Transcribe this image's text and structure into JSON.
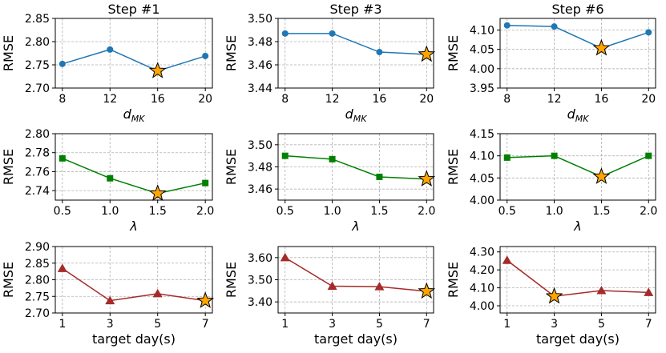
{
  "chart_data": [
    {
      "type": "line",
      "title": "Step #1",
      "xlabel": "d_MK",
      "ylabel": "RMSE",
      "x": [
        8,
        12,
        16,
        20
      ],
      "values": [
        2.752,
        2.783,
        2.737,
        2.769
      ],
      "best_index": 2,
      "xlim": [
        8,
        20
      ],
      "ylim": [
        2.7,
        2.85
      ],
      "xticks": [
        8,
        12,
        16,
        20
      ],
      "xticklabels": [
        "8",
        "12",
        "16",
        "20"
      ],
      "yticks": [
        2.7,
        2.75,
        2.8,
        2.85
      ],
      "yticklabels": [
        "2.70",
        "2.75",
        "2.80",
        "2.85"
      ],
      "color": "#1f77b4",
      "marker": "circle",
      "grid": true
    },
    {
      "type": "line",
      "title": "Step #3",
      "xlabel": "d_MK",
      "ylabel": "RMSE",
      "x": [
        8,
        12,
        16,
        20
      ],
      "values": [
        3.487,
        3.487,
        3.471,
        3.469
      ],
      "best_index": 3,
      "xlim": [
        8,
        20
      ],
      "ylim": [
        3.44,
        3.5
      ],
      "xticks": [
        8,
        12,
        16,
        20
      ],
      "xticklabels": [
        "8",
        "12",
        "16",
        "20"
      ],
      "yticks": [
        3.44,
        3.46,
        3.48,
        3.5
      ],
      "yticklabels": [
        "3.44",
        "3.46",
        "3.48",
        "3.50"
      ],
      "color": "#1f77b4",
      "marker": "circle",
      "grid": true
    },
    {
      "type": "line",
      "title": "Step #6",
      "xlabel": "d_MK",
      "ylabel": "RMSE",
      "x": [
        8,
        12,
        16,
        20
      ],
      "values": [
        4.112,
        4.109,
        4.053,
        4.094
      ],
      "best_index": 2,
      "xlim": [
        8,
        20
      ],
      "ylim": [
        3.95,
        4.13
      ],
      "xticks": [
        8,
        12,
        16,
        20
      ],
      "xticklabels": [
        "8",
        "12",
        "16",
        "20"
      ],
      "yticks": [
        3.95,
        4.0,
        4.05,
        4.1
      ],
      "yticklabels": [
        "3.95",
        "4.00",
        "4.05",
        "4.10"
      ],
      "color": "#1f77b4",
      "marker": "circle",
      "grid": true
    },
    {
      "type": "line",
      "title": "",
      "xlabel": "λ",
      "ylabel": "RMSE",
      "x": [
        0.5,
        1.0,
        1.5,
        2.0
      ],
      "values": [
        2.774,
        2.753,
        2.737,
        2.748
      ],
      "best_index": 2,
      "xlim": [
        0.5,
        2.0
      ],
      "ylim": [
        2.73,
        2.8
      ],
      "xticks": [
        0.5,
        1.0,
        1.5,
        2.0
      ],
      "xticklabels": [
        "0.5",
        "1.0",
        "1.5",
        "2.0"
      ],
      "yticks": [
        2.74,
        2.76,
        2.78,
        2.8
      ],
      "yticklabels": [
        "2.74",
        "2.76",
        "2.78",
        "2.80"
      ],
      "color": "#008000",
      "marker": "square",
      "grid": true
    },
    {
      "type": "line",
      "title": "",
      "xlabel": "λ",
      "ylabel": "RMSE",
      "x": [
        0.5,
        1.0,
        1.5,
        2.0
      ],
      "values": [
        3.49,
        3.487,
        3.471,
        3.469
      ],
      "best_index": 3,
      "xlim": [
        0.5,
        2.0
      ],
      "ylim": [
        3.45,
        3.51
      ],
      "xticks": [
        0.5,
        1.0,
        1.5,
        2.0
      ],
      "xticklabels": [
        "0.5",
        "1.0",
        "1.5",
        "2.0"
      ],
      "yticks": [
        3.46,
        3.48,
        3.5
      ],
      "yticklabels": [
        "3.46",
        "3.48",
        "3.50"
      ],
      "color": "#008000",
      "marker": "square",
      "grid": true
    },
    {
      "type": "line",
      "title": "",
      "xlabel": "λ",
      "ylabel": "RMSE",
      "x": [
        0.5,
        1.0,
        1.5,
        2.0
      ],
      "values": [
        4.096,
        4.1,
        4.053,
        4.1
      ],
      "best_index": 2,
      "xlim": [
        0.5,
        2.0
      ],
      "ylim": [
        4.0,
        4.15
      ],
      "xticks": [
        0.5,
        1.0,
        1.5,
        2.0
      ],
      "xticklabels": [
        "0.5",
        "1.0",
        "1.5",
        "2.0"
      ],
      "yticks": [
        4.0,
        4.05,
        4.1,
        4.15
      ],
      "yticklabels": [
        "4.00",
        "4.05",
        "4.10",
        "4.15"
      ],
      "color": "#008000",
      "marker": "square",
      "grid": true
    },
    {
      "type": "line",
      "title": "",
      "xlabel": "target day(s)",
      "ylabel": "RMSE",
      "x": [
        1,
        3,
        5,
        7
      ],
      "values": [
        2.834,
        2.737,
        2.758,
        2.737
      ],
      "best_index": 3,
      "xlim": [
        1,
        7
      ],
      "ylim": [
        2.7,
        2.9
      ],
      "xticks": [
        1,
        3,
        5,
        7
      ],
      "xticklabels": [
        "1",
        "3",
        "5",
        "7"
      ],
      "yticks": [
        2.7,
        2.75,
        2.8,
        2.85,
        2.9
      ],
      "yticklabels": [
        "2.70",
        "2.75",
        "2.80",
        "2.85",
        "2.90"
      ],
      "color": "#a52a2a",
      "marker": "triangle",
      "grid": true
    },
    {
      "type": "line",
      "title": "",
      "xlabel": "target day(s)",
      "ylabel": "RMSE",
      "x": [
        1,
        3,
        5,
        7
      ],
      "values": [
        3.6,
        3.471,
        3.469,
        3.448
      ],
      "best_index": 3,
      "xlim": [
        1,
        7
      ],
      "ylim": [
        3.35,
        3.65
      ],
      "xticks": [
        1,
        3,
        5,
        7
      ],
      "xticklabels": [
        "1",
        "3",
        "5",
        "7"
      ],
      "yticks": [
        3.4,
        3.5,
        3.6
      ],
      "yticklabels": [
        "3.40",
        "3.50",
        "3.60"
      ],
      "color": "#a52a2a",
      "marker": "triangle",
      "grid": true
    },
    {
      "type": "line",
      "title": "",
      "xlabel": "target day(s)",
      "ylabel": "RMSE",
      "x": [
        1,
        3,
        5,
        7
      ],
      "values": [
        4.253,
        4.053,
        4.085,
        4.074
      ],
      "best_index": 1,
      "xlim": [
        1,
        7
      ],
      "ylim": [
        3.96,
        4.33
      ],
      "xticks": [
        1,
        3,
        5,
        7
      ],
      "xticklabels": [
        "1",
        "3",
        "5",
        "7"
      ],
      "yticks": [
        4.0,
        4.1,
        4.2,
        4.3
      ],
      "yticklabels": [
        "4.00",
        "4.10",
        "4.20",
        "4.30"
      ],
      "color": "#a52a2a",
      "marker": "triangle",
      "grid": true
    }
  ],
  "star_marker": {
    "fill": "#ffa500",
    "edge": "#000000"
  }
}
